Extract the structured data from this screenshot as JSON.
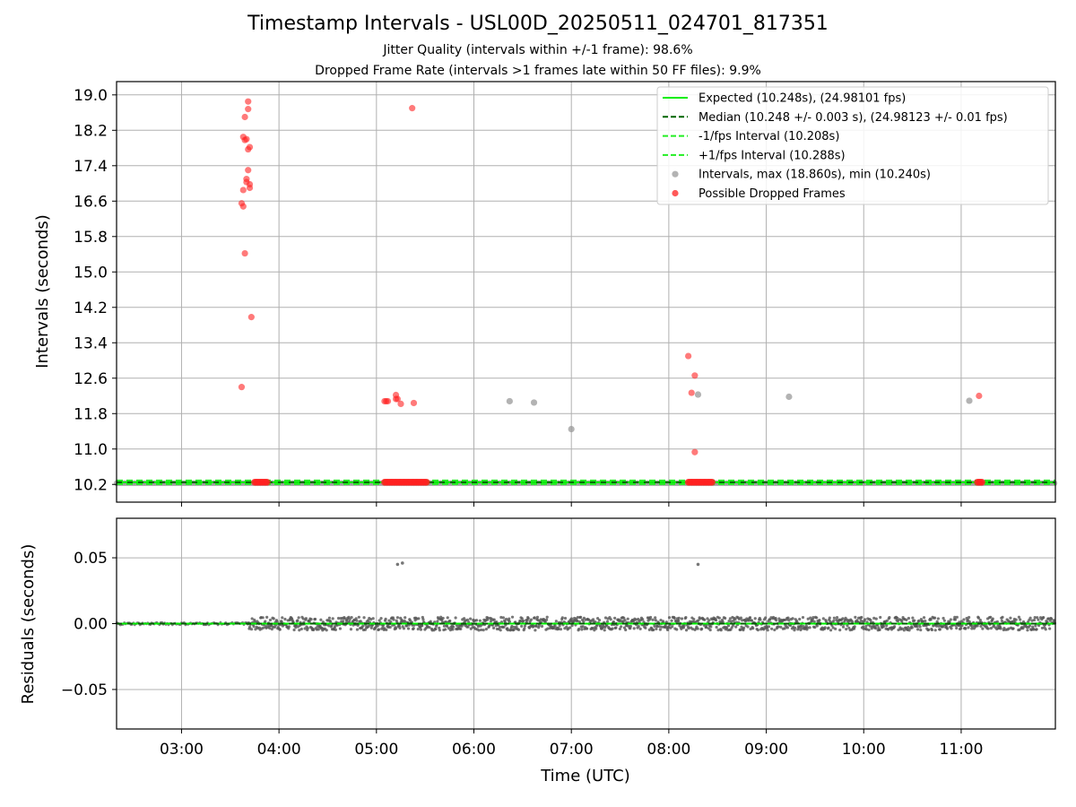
{
  "chart_data": [
    {
      "type": "scatter",
      "title": "Timestamp Intervals - USL00D_20250511_024701_817351",
      "subtitle_lines": [
        "Jitter Quality (intervals within +/-1 frame): 98.6%",
        "Dropped Frame Rate (intervals >1 frames late within 50 FF files): 9.9%"
      ],
      "xlabel": "",
      "ylabel": "Intervals (seconds)",
      "x_range": [
        "02:20",
        "11:58"
      ],
      "ylim": [
        9.8,
        19.3
      ],
      "y_ticks": [
        "10.2",
        "11.0",
        "11.8",
        "12.6",
        "13.4",
        "14.2",
        "15.0",
        "15.8",
        "16.6",
        "17.4",
        "18.2",
        "19.0"
      ],
      "grid": true,
      "legend_position": "top-right",
      "legend": [
        {
          "label": "Expected (10.248s), (24.98101 fps)",
          "style": "solid-line",
          "color": "#00ee00"
        },
        {
          "label": "Median (10.248 +/- 0.003 s), (24.98123 +/- 0.01 fps)",
          "style": "dashed-line",
          "color": "#006400"
        },
        {
          "label": "-1/fps Interval (10.208s)",
          "style": "dashed-line",
          "color": "#22ee22"
        },
        {
          "label": "+1/fps Interval (10.288s)",
          "style": "dashed-line",
          "color": "#22ee22"
        },
        {
          "label": "Intervals, max (18.860s), min (10.240s)",
          "style": "marker",
          "color": "#999999"
        },
        {
          "label": "Possible Dropped Frames",
          "style": "marker",
          "color": "#ff2222"
        }
      ],
      "series": [
        {
          "name": "Expected (10.248s), (24.98101 fps)",
          "kind": "hline",
          "y": 10.248,
          "color": "#00ee00"
        },
        {
          "name": "Median (10.248 +/- 0.003 s), (24.98123 +/- 0.01 fps)",
          "kind": "hline",
          "y": 10.248,
          "color": "#006400"
        },
        {
          "name": "-1/fps Interval (10.208s)",
          "kind": "hline",
          "y": 10.208,
          "color": "#22ee22"
        },
        {
          "name": "+1/fps Interval (10.288s)",
          "kind": "hline",
          "y": 10.288,
          "color": "#22ee22"
        },
        {
          "name": "Intervals, max (18.860s), min (10.240s)",
          "kind": "scatter",
          "color": "#999999",
          "points": [
            {
              "x": "06:22",
              "y": 12.08
            },
            {
              "x": "06:37",
              "y": 12.05
            },
            {
              "x": "07:00",
              "y": 11.45
            },
            {
              "x": "08:18",
              "y": 12.23
            },
            {
              "x": "09:14",
              "y": 12.18
            },
            {
              "x": "11:05",
              "y": 12.09
            }
          ]
        },
        {
          "name": "Possible Dropped Frames",
          "kind": "scatter",
          "color": "#ff2222",
          "points": [
            {
              "x": "03:37",
              "y": 12.4
            },
            {
              "x": "03:37",
              "y": 16.55
            },
            {
              "x": "03:38",
              "y": 16.48
            },
            {
              "x": "03:38",
              "y": 16.85
            },
            {
              "x": "03:38",
              "y": 18.05
            },
            {
              "x": "03:39",
              "y": 17.98
            },
            {
              "x": "03:39",
              "y": 18.5
            },
            {
              "x": "03:39",
              "y": 15.42
            },
            {
              "x": "03:40",
              "y": 17.1
            },
            {
              "x": "03:40",
              "y": 18.0
            },
            {
              "x": "03:40",
              "y": 17.03
            },
            {
              "x": "03:41",
              "y": 18.85
            },
            {
              "x": "03:41",
              "y": 18.68
            },
            {
              "x": "03:41",
              "y": 17.77
            },
            {
              "x": "03:41",
              "y": 17.3
            },
            {
              "x": "03:42",
              "y": 17.82
            },
            {
              "x": "03:42",
              "y": 16.9
            },
            {
              "x": "03:42",
              "y": 16.98
            },
            {
              "x": "03:43",
              "y": 13.98
            },
            {
              "x": "05:05",
              "y": 12.08
            },
            {
              "x": "05:06",
              "y": 12.08
            },
            {
              "x": "05:07",
              "y": 12.08
            },
            {
              "x": "05:12",
              "y": 12.22
            },
            {
              "x": "05:12",
              "y": 12.13
            },
            {
              "x": "05:13",
              "y": 12.13
            },
            {
              "x": "05:15",
              "y": 12.02
            },
            {
              "x": "05:22",
              "y": 18.7
            },
            {
              "x": "05:23",
              "y": 12.04
            },
            {
              "x": "08:12",
              "y": 13.1
            },
            {
              "x": "08:14",
              "y": 12.27
            },
            {
              "x": "08:16",
              "y": 12.66
            },
            {
              "x": "08:16",
              "y": 10.93
            },
            {
              "x": "11:11",
              "y": 12.2
            }
          ],
          "clusters_near_expected": [
            {
              "x_start": "03:45",
              "x_end": "03:53",
              "y": 10.25
            },
            {
              "x_start": "05:05",
              "x_end": "05:31",
              "y": 10.25
            },
            {
              "x_start": "08:12",
              "x_end": "08:27",
              "y": 10.25
            },
            {
              "x_start": "11:10",
              "x_end": "11:13",
              "y": 10.25
            }
          ]
        },
        {
          "name": "Intervals (dense, near expected)",
          "kind": "band",
          "x_start": "02:20",
          "x_end": "11:58",
          "y": 10.248,
          "color": "#999999"
        }
      ]
    },
    {
      "type": "scatter",
      "title": "",
      "xlabel": "Time (UTC)",
      "ylabel": "Residuals (seconds)",
      "x_range": [
        "02:20",
        "11:58"
      ],
      "x_ticks": [
        "03:00",
        "04:00",
        "05:00",
        "06:00",
        "07:00",
        "08:00",
        "09:00",
        "10:00",
        "11:00"
      ],
      "ylim": [
        -0.08,
        0.08
      ],
      "y_ticks": [
        "−0.05",
        "0.00",
        "0.05"
      ],
      "y_tick_values": [
        -0.05,
        0.0,
        0.05
      ],
      "grid": true,
      "series": [
        {
          "name": "",
          "kind": "hline",
          "y": 0.0,
          "color": "#00ee00"
        },
        {
          "name": "",
          "kind": "hline-dashed",
          "y": 0.0,
          "color": "#006400"
        },
        {
          "name": "",
          "kind": "residual-band",
          "color": "#555555",
          "x_start": "03:41",
          "x_end": "11:58",
          "spread": 0.005,
          "early_x_start": "02:20",
          "early_x_end": "03:41",
          "early_spread": 0.001
        },
        {
          "name": "",
          "kind": "scatter",
          "color": "#777777",
          "points": [
            {
              "x": "05:13",
              "y": 0.045
            },
            {
              "x": "05:16",
              "y": 0.046
            },
            {
              "x": "08:18",
              "y": 0.045
            }
          ]
        }
      ]
    }
  ]
}
